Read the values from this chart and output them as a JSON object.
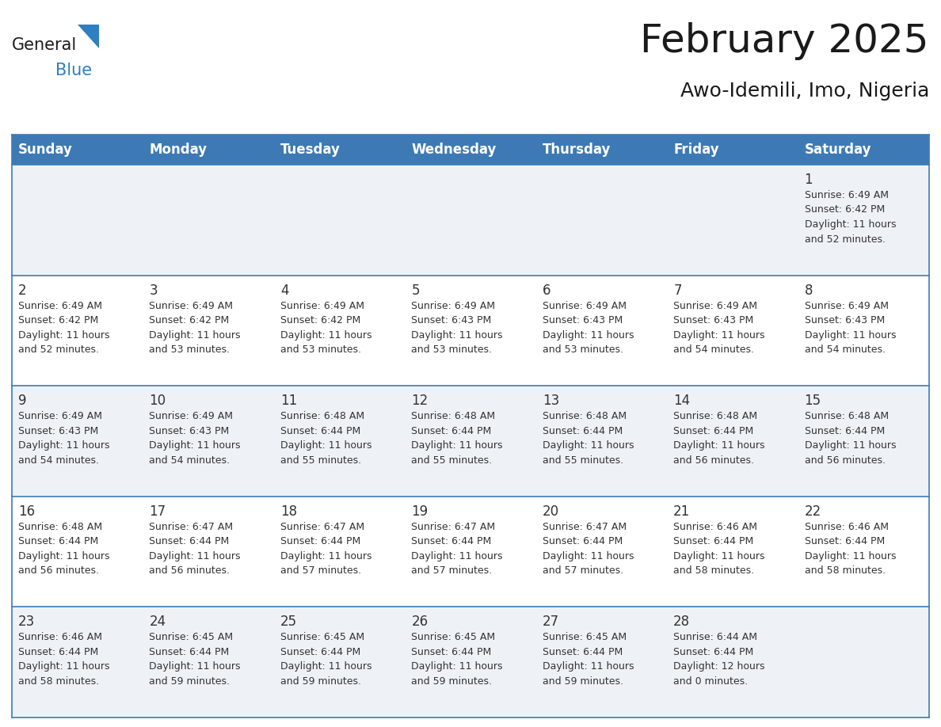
{
  "title": "February 2025",
  "subtitle": "Awo-Idemili, Imo, Nigeria",
  "header_bg_color": "#3d7ab5",
  "header_text_color": "#ffffff",
  "cell_bg_color_odd": "#eef2f7",
  "cell_bg_color_even": "#ffffff",
  "row_border_color": "#3d7ab5",
  "day_number_color": "#333333",
  "info_text_color": "#333333",
  "days_of_week": [
    "Sunday",
    "Monday",
    "Tuesday",
    "Wednesday",
    "Thursday",
    "Friday",
    "Saturday"
  ],
  "weeks": [
    [
      {
        "day": null,
        "info": null
      },
      {
        "day": null,
        "info": null
      },
      {
        "day": null,
        "info": null
      },
      {
        "day": null,
        "info": null
      },
      {
        "day": null,
        "info": null
      },
      {
        "day": null,
        "info": null
      },
      {
        "day": "1",
        "info": "Sunrise: 6:49 AM\nSunset: 6:42 PM\nDaylight: 11 hours\nand 52 minutes."
      }
    ],
    [
      {
        "day": "2",
        "info": "Sunrise: 6:49 AM\nSunset: 6:42 PM\nDaylight: 11 hours\nand 52 minutes."
      },
      {
        "day": "3",
        "info": "Sunrise: 6:49 AM\nSunset: 6:42 PM\nDaylight: 11 hours\nand 53 minutes."
      },
      {
        "day": "4",
        "info": "Sunrise: 6:49 AM\nSunset: 6:42 PM\nDaylight: 11 hours\nand 53 minutes."
      },
      {
        "day": "5",
        "info": "Sunrise: 6:49 AM\nSunset: 6:43 PM\nDaylight: 11 hours\nand 53 minutes."
      },
      {
        "day": "6",
        "info": "Sunrise: 6:49 AM\nSunset: 6:43 PM\nDaylight: 11 hours\nand 53 minutes."
      },
      {
        "day": "7",
        "info": "Sunrise: 6:49 AM\nSunset: 6:43 PM\nDaylight: 11 hours\nand 54 minutes."
      },
      {
        "day": "8",
        "info": "Sunrise: 6:49 AM\nSunset: 6:43 PM\nDaylight: 11 hours\nand 54 minutes."
      }
    ],
    [
      {
        "day": "9",
        "info": "Sunrise: 6:49 AM\nSunset: 6:43 PM\nDaylight: 11 hours\nand 54 minutes."
      },
      {
        "day": "10",
        "info": "Sunrise: 6:49 AM\nSunset: 6:43 PM\nDaylight: 11 hours\nand 54 minutes."
      },
      {
        "day": "11",
        "info": "Sunrise: 6:48 AM\nSunset: 6:44 PM\nDaylight: 11 hours\nand 55 minutes."
      },
      {
        "day": "12",
        "info": "Sunrise: 6:48 AM\nSunset: 6:44 PM\nDaylight: 11 hours\nand 55 minutes."
      },
      {
        "day": "13",
        "info": "Sunrise: 6:48 AM\nSunset: 6:44 PM\nDaylight: 11 hours\nand 55 minutes."
      },
      {
        "day": "14",
        "info": "Sunrise: 6:48 AM\nSunset: 6:44 PM\nDaylight: 11 hours\nand 56 minutes."
      },
      {
        "day": "15",
        "info": "Sunrise: 6:48 AM\nSunset: 6:44 PM\nDaylight: 11 hours\nand 56 minutes."
      }
    ],
    [
      {
        "day": "16",
        "info": "Sunrise: 6:48 AM\nSunset: 6:44 PM\nDaylight: 11 hours\nand 56 minutes."
      },
      {
        "day": "17",
        "info": "Sunrise: 6:47 AM\nSunset: 6:44 PM\nDaylight: 11 hours\nand 56 minutes."
      },
      {
        "day": "18",
        "info": "Sunrise: 6:47 AM\nSunset: 6:44 PM\nDaylight: 11 hours\nand 57 minutes."
      },
      {
        "day": "19",
        "info": "Sunrise: 6:47 AM\nSunset: 6:44 PM\nDaylight: 11 hours\nand 57 minutes."
      },
      {
        "day": "20",
        "info": "Sunrise: 6:47 AM\nSunset: 6:44 PM\nDaylight: 11 hours\nand 57 minutes."
      },
      {
        "day": "21",
        "info": "Sunrise: 6:46 AM\nSunset: 6:44 PM\nDaylight: 11 hours\nand 58 minutes."
      },
      {
        "day": "22",
        "info": "Sunrise: 6:46 AM\nSunset: 6:44 PM\nDaylight: 11 hours\nand 58 minutes."
      }
    ],
    [
      {
        "day": "23",
        "info": "Sunrise: 6:46 AM\nSunset: 6:44 PM\nDaylight: 11 hours\nand 58 minutes."
      },
      {
        "day": "24",
        "info": "Sunrise: 6:45 AM\nSunset: 6:44 PM\nDaylight: 11 hours\nand 59 minutes."
      },
      {
        "day": "25",
        "info": "Sunrise: 6:45 AM\nSunset: 6:44 PM\nDaylight: 11 hours\nand 59 minutes."
      },
      {
        "day": "26",
        "info": "Sunrise: 6:45 AM\nSunset: 6:44 PM\nDaylight: 11 hours\nand 59 minutes."
      },
      {
        "day": "27",
        "info": "Sunrise: 6:45 AM\nSunset: 6:44 PM\nDaylight: 11 hours\nand 59 minutes."
      },
      {
        "day": "28",
        "info": "Sunrise: 6:44 AM\nSunset: 6:44 PM\nDaylight: 12 hours\nand 0 minutes."
      },
      {
        "day": null,
        "info": null
      }
    ]
  ],
  "logo_text_general": "General",
  "logo_text_blue": "Blue",
  "logo_color_general": "#1a1a1a",
  "logo_color_blue": "#2e7fc1",
  "logo_triangle_color": "#2e7fc1",
  "title_fontsize": 36,
  "subtitle_fontsize": 18,
  "header_fontsize": 12,
  "day_number_fontsize": 12,
  "info_fontsize": 9
}
